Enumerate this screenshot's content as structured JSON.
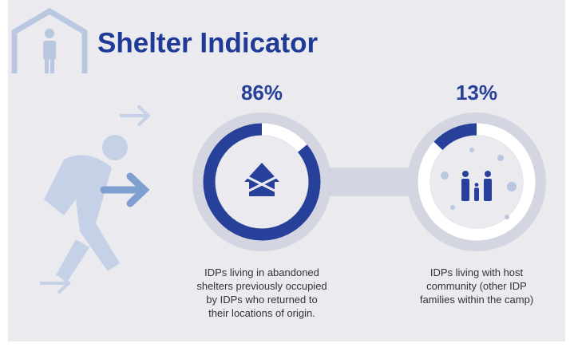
{
  "title": "Shelter Indicator",
  "chart_data": [
    {
      "type": "donut",
      "values": [
        86
      ],
      "value_labels": [
        "86%"
      ],
      "color": "#27409a",
      "caption": [
        "IDPs living in abandoned",
        "shelters previously occupied",
        "by IDPs who returned to",
        "their locations of origin."
      ]
    },
    {
      "type": "donut",
      "values": [
        13
      ],
      "value_labels": [
        "13%"
      ],
      "color": "#27409a",
      "caption": [
        "IDPs living with host",
        "community (other IDP",
        "families within the camp)"
      ]
    }
  ]
}
